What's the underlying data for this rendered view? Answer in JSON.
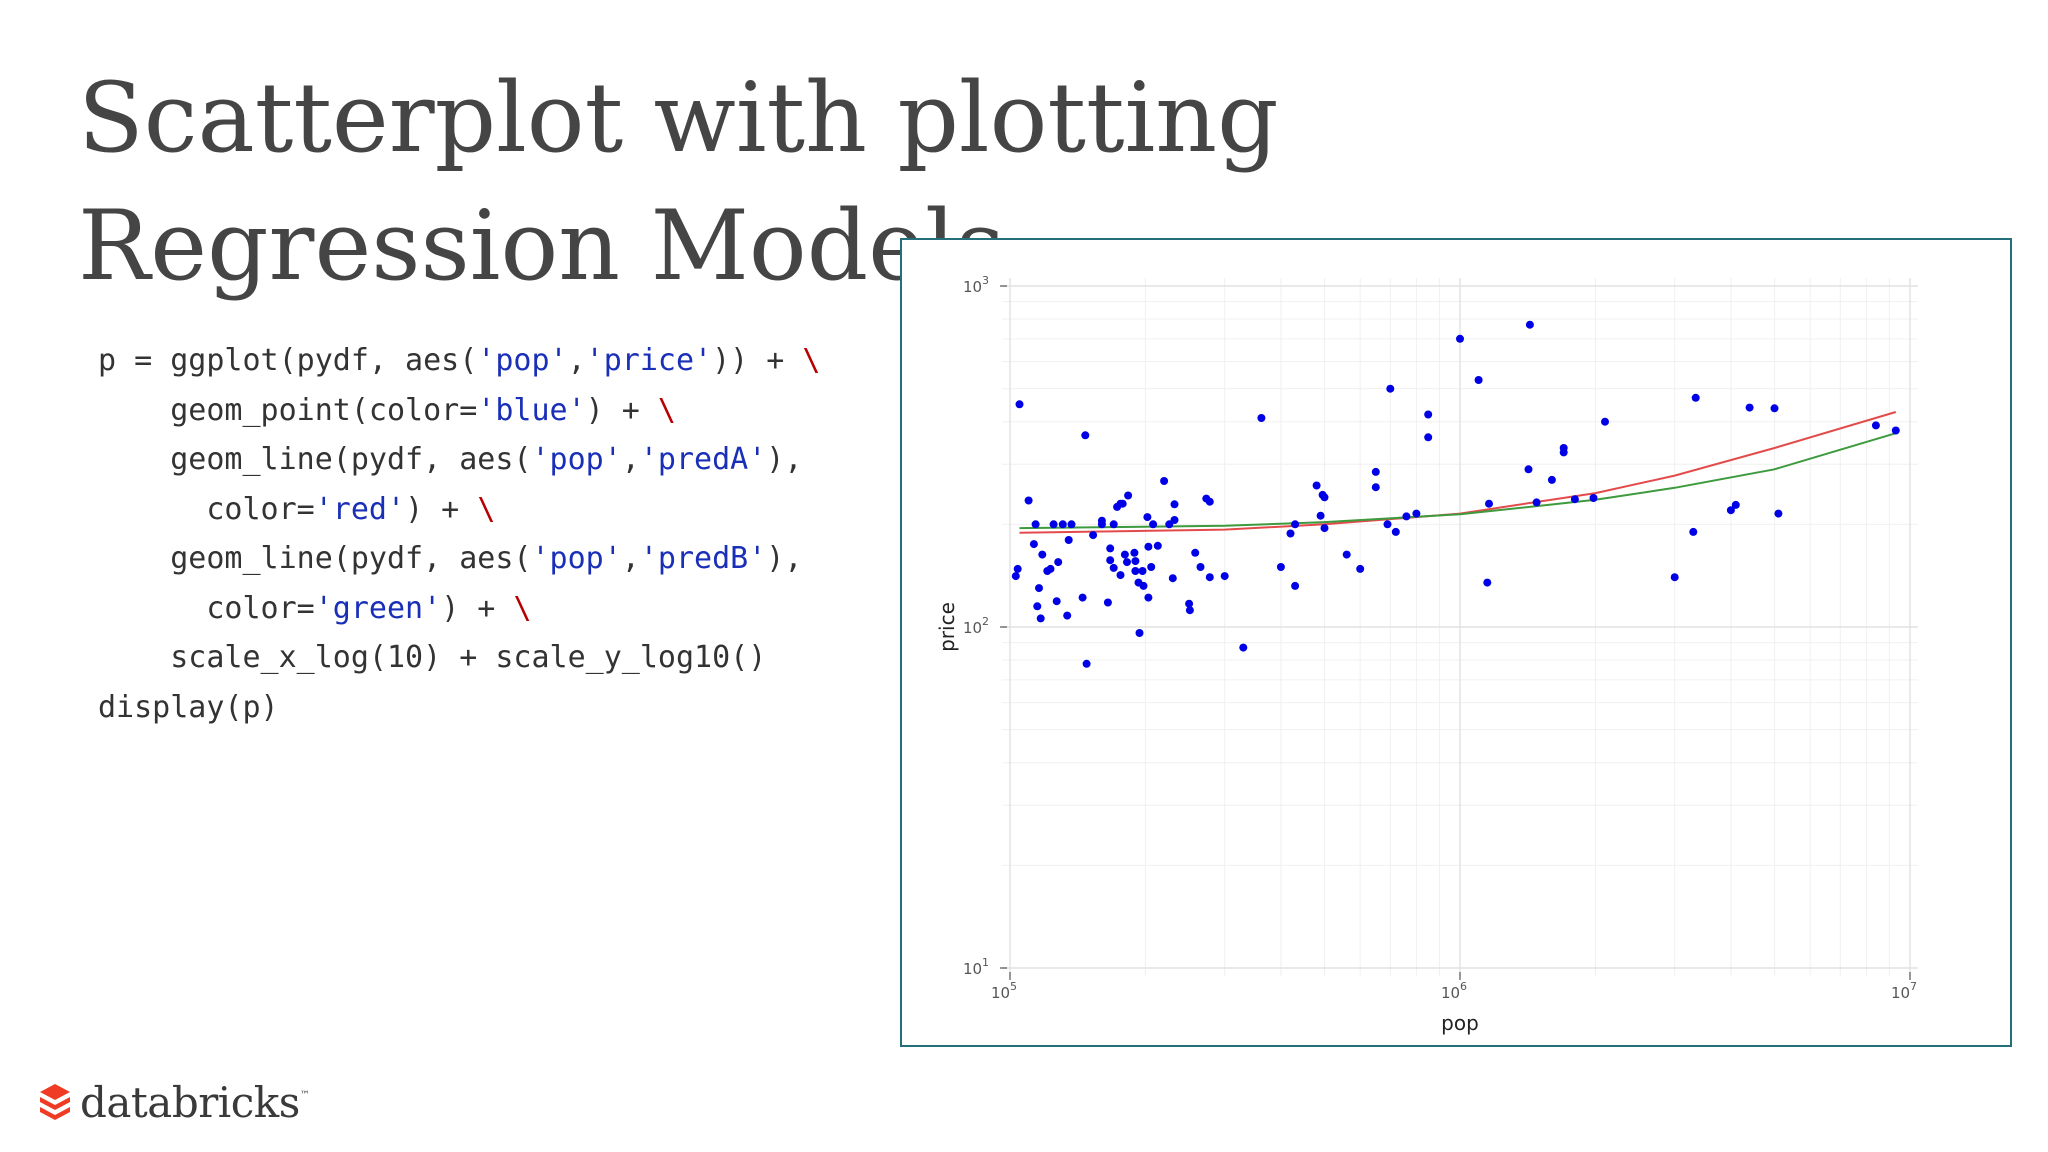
{
  "slide": {
    "title": "Scatterplot with plotting Regression Models"
  },
  "code": [
    [
      {
        "t": "p = ggplot(pydf, aes("
      },
      {
        "t": "'pop'",
        "c": "s"
      },
      {
        "t": ","
      },
      {
        "t": "'price'",
        "c": "s"
      },
      {
        "t": ")) + "
      },
      {
        "t": "\\",
        "c": "k"
      }
    ],
    [
      {
        "t": "    geom_point(color="
      },
      {
        "t": "'blue'",
        "c": "s"
      },
      {
        "t": ") + "
      },
      {
        "t": "\\",
        "c": "k"
      }
    ],
    [
      {
        "t": "    geom_line(pydf, aes("
      },
      {
        "t": "'pop'",
        "c": "s"
      },
      {
        "t": ","
      },
      {
        "t": "'predA'",
        "c": "s"
      },
      {
        "t": "),"
      }
    ],
    [
      {
        "t": "      color="
      },
      {
        "t": "'red'",
        "c": "s"
      },
      {
        "t": ") + "
      },
      {
        "t": "\\",
        "c": "k"
      }
    ],
    [
      {
        "t": "    geom_line(pydf, aes("
      },
      {
        "t": "'pop'",
        "c": "s"
      },
      {
        "t": ","
      },
      {
        "t": "'predB'",
        "c": "s"
      },
      {
        "t": "),"
      }
    ],
    [
      {
        "t": "      color="
      },
      {
        "t": "'green'",
        "c": "s"
      },
      {
        "t": ") + "
      },
      {
        "t": "\\",
        "c": "k"
      }
    ],
    [
      {
        "t": "    scale_x_log(10) + scale_y_log10()"
      }
    ],
    [
      {
        "t": "display(p)"
      }
    ]
  ],
  "chart_data": {
    "type": "scatter",
    "title": "",
    "xlabel": "pop",
    "ylabel": "price",
    "x_scale": "log10",
    "y_scale": "log10",
    "xlim": [
      100000,
      10000000
    ],
    "ylim": [
      10,
      1000
    ],
    "x_ticks": [
      {
        "base": "10",
        "exp": "5"
      },
      {
        "base": "10",
        "exp": "6"
      },
      {
        "base": "10",
        "exp": "7"
      }
    ],
    "y_ticks": [
      {
        "base": "10",
        "exp": "3",
        "value": 1000
      },
      {
        "base": "10",
        "exp": "2",
        "value": 100
      },
      {
        "base": "10",
        "exp": "1",
        "value": 10
      }
    ],
    "grid": true,
    "colors": {
      "points": "#0000e6",
      "predA": "#e34b4b",
      "predB": "#3d9a3d"
    },
    "series": [
      {
        "name": "price",
        "kind": "points",
        "points": [
          [
            103000,
            141
          ],
          [
            104000,
            148
          ],
          [
            105000,
            450
          ],
          [
            110000,
            235
          ],
          [
            113000,
            175
          ],
          [
            114000,
            200
          ],
          [
            115000,
            115
          ],
          [
            116000,
            130
          ],
          [
            117000,
            106
          ],
          [
            118000,
            163
          ],
          [
            121000,
            146
          ],
          [
            123000,
            148
          ],
          [
            125000,
            200
          ],
          [
            127000,
            119
          ],
          [
            128000,
            155
          ],
          [
            131000,
            200
          ],
          [
            134000,
            108
          ],
          [
            135000,
            180
          ],
          [
            137000,
            200
          ],
          [
            145000,
            122
          ],
          [
            147000,
            365
          ],
          [
            148000,
            78
          ],
          [
            153000,
            186
          ],
          [
            160000,
            200
          ],
          [
            160000,
            205
          ],
          [
            165000,
            118
          ],
          [
            167000,
            157
          ],
          [
            167000,
            170
          ],
          [
            170000,
            149
          ],
          [
            170000,
            200
          ],
          [
            173000,
            225
          ],
          [
            176000,
            142
          ],
          [
            176000,
            230
          ],
          [
            178000,
            230
          ],
          [
            180000,
            163
          ],
          [
            182000,
            155
          ],
          [
            183000,
            243
          ],
          [
            189000,
            165
          ],
          [
            190000,
            156
          ],
          [
            190000,
            146
          ],
          [
            193000,
            135
          ],
          [
            194000,
            96
          ],
          [
            197000,
            146
          ],
          [
            198000,
            132
          ],
          [
            202000,
            210
          ],
          [
            203000,
            122
          ],
          [
            203000,
            172
          ],
          [
            206000,
            150
          ],
          [
            208000,
            200
          ],
          [
            213000,
            173
          ],
          [
            220000,
            268
          ],
          [
            226000,
            200
          ],
          [
            230000,
            139
          ],
          [
            232000,
            206
          ],
          [
            232000,
            229
          ],
          [
            250000,
            117
          ],
          [
            251000,
            112
          ],
          [
            258000,
            165
          ],
          [
            265000,
            150
          ],
          [
            273000,
            238
          ],
          [
            278000,
            140
          ],
          [
            278000,
            233
          ],
          [
            300000,
            141
          ],
          [
            330000,
            87
          ],
          [
            362000,
            410
          ],
          [
            400000,
            150
          ],
          [
            420000,
            188
          ],
          [
            430000,
            132
          ],
          [
            430000,
            200
          ],
          [
            480000,
            260
          ],
          [
            490000,
            212
          ],
          [
            495000,
            244
          ],
          [
            500000,
            240
          ],
          [
            500000,
            195
          ],
          [
            560000,
            163
          ],
          [
            600000,
            148
          ],
          [
            650000,
            285
          ],
          [
            650000,
            257
          ],
          [
            690000,
            200
          ],
          [
            700000,
            500
          ],
          [
            720000,
            190
          ],
          [
            760000,
            211
          ],
          [
            800000,
            215
          ],
          [
            850000,
            360
          ],
          [
            850000,
            420
          ],
          [
            1000000,
            700
          ],
          [
            1100000,
            530
          ],
          [
            1150000,
            135
          ],
          [
            1160000,
            230
          ],
          [
            1420000,
            290
          ],
          [
            1430000,
            770
          ],
          [
            1480000,
            232
          ],
          [
            1600000,
            270
          ],
          [
            1700000,
            335
          ],
          [
            1700000,
            325
          ],
          [
            1800000,
            237
          ],
          [
            1980000,
            239
          ],
          [
            2100000,
            400
          ],
          [
            3000000,
            140
          ],
          [
            3300000,
            190
          ],
          [
            3340000,
            470
          ],
          [
            4000000,
            220
          ],
          [
            4100000,
            228
          ],
          [
            4400000,
            440
          ],
          [
            5000000,
            438
          ],
          [
            5100000,
            215
          ],
          [
            8400000,
            390
          ],
          [
            9300000,
            377
          ]
        ]
      },
      {
        "name": "predA",
        "kind": "line",
        "points": [
          [
            105000,
            189
          ],
          [
            300000,
            193
          ],
          [
            500000,
            200
          ],
          [
            1000000,
            215
          ],
          [
            2000000,
            247
          ],
          [
            3000000,
            278
          ],
          [
            5000000,
            335
          ],
          [
            9300000,
            427
          ]
        ]
      },
      {
        "name": "predB",
        "kind": "line",
        "points": [
          [
            105000,
            195
          ],
          [
            300000,
            198
          ],
          [
            500000,
            203
          ],
          [
            1000000,
            214
          ],
          [
            2000000,
            236
          ],
          [
            3000000,
            256
          ],
          [
            5000000,
            290
          ],
          [
            9300000,
            370
          ]
        ]
      }
    ]
  },
  "logo": {
    "text": "databricks",
    "tm": "™"
  }
}
